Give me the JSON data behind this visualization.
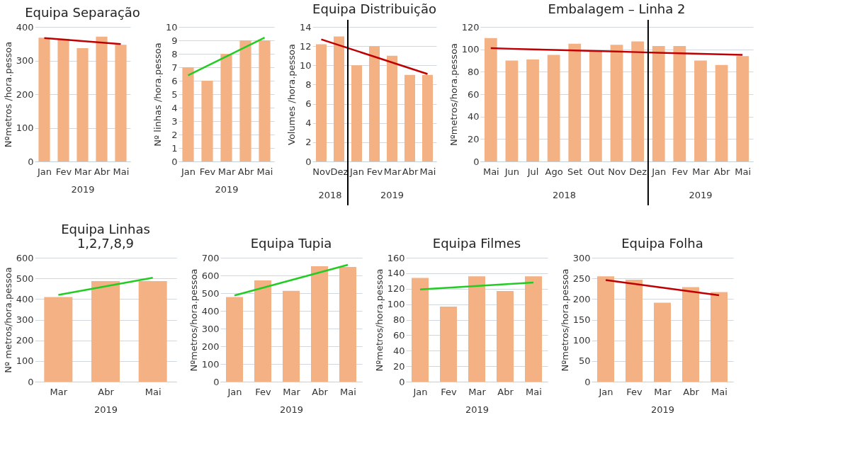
{
  "chart_data": [
    {
      "type": "bar",
      "title": "Equipa Separação",
      "ylabel": "Nºmetros /hora.pessoa",
      "xlabel": "2019",
      "categories": [
        "Jan",
        "Fev",
        "Mar",
        "Abr",
        "Mai"
      ],
      "ylim": [
        0,
        400
      ],
      "yticks": [
        0,
        100,
        200,
        300,
        400
      ],
      "grid": "y",
      "series": [
        {
          "type": "bar",
          "color": "#f4b183",
          "values": [
            368,
            365,
            337,
            371,
            347
          ]
        },
        {
          "type": "line",
          "color": "#c00000",
          "x": [
            "Jan",
            "Mai"
          ],
          "values": [
            367,
            349
          ]
        }
      ]
    },
    {
      "type": "bar",
      "ylabel": "Nº linhas /hora.pessoa",
      "xlabel": "2019",
      "categories": [
        "Jan",
        "Fev",
        "Mar",
        "Abr",
        "Mai"
      ],
      "ylim": [
        0,
        10
      ],
      "yticks": [
        0,
        1,
        2,
        3,
        4,
        5,
        6,
        7,
        8,
        9,
        10
      ],
      "grid": "y",
      "series": [
        {
          "type": "bar",
          "color": "#f4b183",
          "values": [
            7,
            6,
            8,
            9,
            9
          ]
        },
        {
          "type": "line",
          "color": "#22cc22",
          "x": [
            "Jan",
            "Mai"
          ],
          "values": [
            6.4,
            9.2
          ]
        }
      ]
    },
    {
      "type": "bar",
      "title": "Equipa Distribuição",
      "ylabel": "Volumes /hora.pessoa",
      "categories": [
        "Nov",
        "Dez",
        "Jan",
        "Fev",
        "Mar",
        "Abr",
        "Mai"
      ],
      "ylim": [
        0,
        14
      ],
      "yticks": [
        0,
        2,
        4,
        6,
        8,
        10,
        12,
        14
      ],
      "grid": "y",
      "annotations": [
        "2018",
        "2019"
      ],
      "ref_lines": [
        {
          "axis": "x",
          "value": "Jan",
          "color": "#000000"
        }
      ],
      "series": [
        {
          "type": "bar",
          "color": "#f4b183",
          "values": [
            12.2,
            13,
            10,
            12,
            11,
            9,
            9
          ]
        },
        {
          "type": "line",
          "color": "#c00000",
          "x": [
            "Nov",
            "Mai"
          ],
          "values": [
            12.7,
            9.1
          ]
        }
      ]
    },
    {
      "type": "bar",
      "title": "Embalagem – Linha 2",
      "ylabel": "Nºmetros/hora.pessoa",
      "categories": [
        "Mai",
        "Jun",
        "Jul",
        "Ago",
        "Set",
        "Out",
        "Nov",
        "Dez",
        "Jan",
        "Fev",
        "Mar",
        "Abr",
        "Mai"
      ],
      "ylim": [
        0,
        120
      ],
      "yticks": [
        0,
        20,
        40,
        60,
        80,
        100,
        120
      ],
      "grid": "y",
      "annotations": [
        "2018",
        "2019"
      ],
      "ref_lines": [
        {
          "axis": "x",
          "value": "Jan",
          "color": "#000000"
        }
      ],
      "series": [
        {
          "type": "bar",
          "color": "#f4b183",
          "values": [
            110,
            90,
            91,
            95,
            105,
            99,
            104,
            107,
            103,
            103,
            90,
            86,
            94
          ]
        },
        {
          "type": "line",
          "color": "#c00000",
          "values": [
            101,
            100.5,
            100,
            99.5,
            99,
            98.5,
            98,
            97.5,
            97,
            96.5,
            96,
            95.5,
            95
          ]
        }
      ]
    },
    {
      "type": "bar",
      "title": "Equipa Linhas 1,2,7,8,9",
      "ylabel": "Nº metros/hora.pessoa",
      "xlabel": "2019",
      "categories": [
        "Mar",
        "Abr",
        "Mai"
      ],
      "ylim": [
        0,
        600
      ],
      "yticks": [
        0,
        100,
        200,
        300,
        400,
        500,
        600
      ],
      "grid": "y",
      "series": [
        {
          "type": "bar",
          "color": "#f4b183",
          "values": [
            410,
            487,
            487
          ]
        },
        {
          "type": "line",
          "color": "#22cc22",
          "x": [
            "Mar",
            "Mai"
          ],
          "values": [
            420,
            503
          ]
        }
      ]
    },
    {
      "type": "bar",
      "title": "Equipa Tupia",
      "ylabel": "Nºmetros/hora.pessoa",
      "xlabel": "2019",
      "categories": [
        "Jan",
        "Fev",
        "Mar",
        "Abr",
        "Mai"
      ],
      "ylim": [
        0,
        700
      ],
      "yticks": [
        0,
        100,
        200,
        300,
        400,
        500,
        600,
        700
      ],
      "grid": "y",
      "series": [
        {
          "type": "bar",
          "color": "#f4b183",
          "values": [
            478,
            572,
            513,
            652,
            648
          ]
        },
        {
          "type": "line",
          "color": "#22cc22",
          "x": [
            "Jan",
            "Mai"
          ],
          "values": [
            487,
            660
          ]
        }
      ]
    },
    {
      "type": "bar",
      "title": "Equipa Filmes",
      "ylabel": "Nºmetros/hora.pessoa",
      "xlabel": "2019",
      "categories": [
        "Jan",
        "Fev",
        "Mar",
        "Abr",
        "Mai"
      ],
      "ylim": [
        0,
        160
      ],
      "yticks": [
        0,
        20,
        40,
        60,
        80,
        100,
        120,
        140,
        160
      ],
      "grid": "y",
      "series": [
        {
          "type": "bar",
          "color": "#f4b183",
          "values": [
            134,
            97,
            136,
            117,
            136
          ]
        },
        {
          "type": "line",
          "color": "#22cc22",
          "x": [
            "Jan",
            "Mai"
          ],
          "values": [
            119,
            128
          ]
        }
      ]
    },
    {
      "type": "bar",
      "title": "Equipa Folha",
      "ylabel": "Nºmetros/hora.pessoa",
      "xlabel": "2019",
      "categories": [
        "Jan",
        "Fev",
        "Mar",
        "Abr",
        "Mai"
      ],
      "ylim": [
        0,
        300
      ],
      "yticks": [
        0,
        50,
        100,
        150,
        200,
        250,
        300
      ],
      "grid": "y",
      "series": [
        {
          "type": "bar",
          "color": "#f4b183",
          "values": [
            255,
            247,
            191,
            229,
            217
          ]
        },
        {
          "type": "line",
          "color": "#c00000",
          "x": [
            "Jan",
            "Mai"
          ],
          "values": [
            246,
            209
          ]
        }
      ]
    }
  ]
}
